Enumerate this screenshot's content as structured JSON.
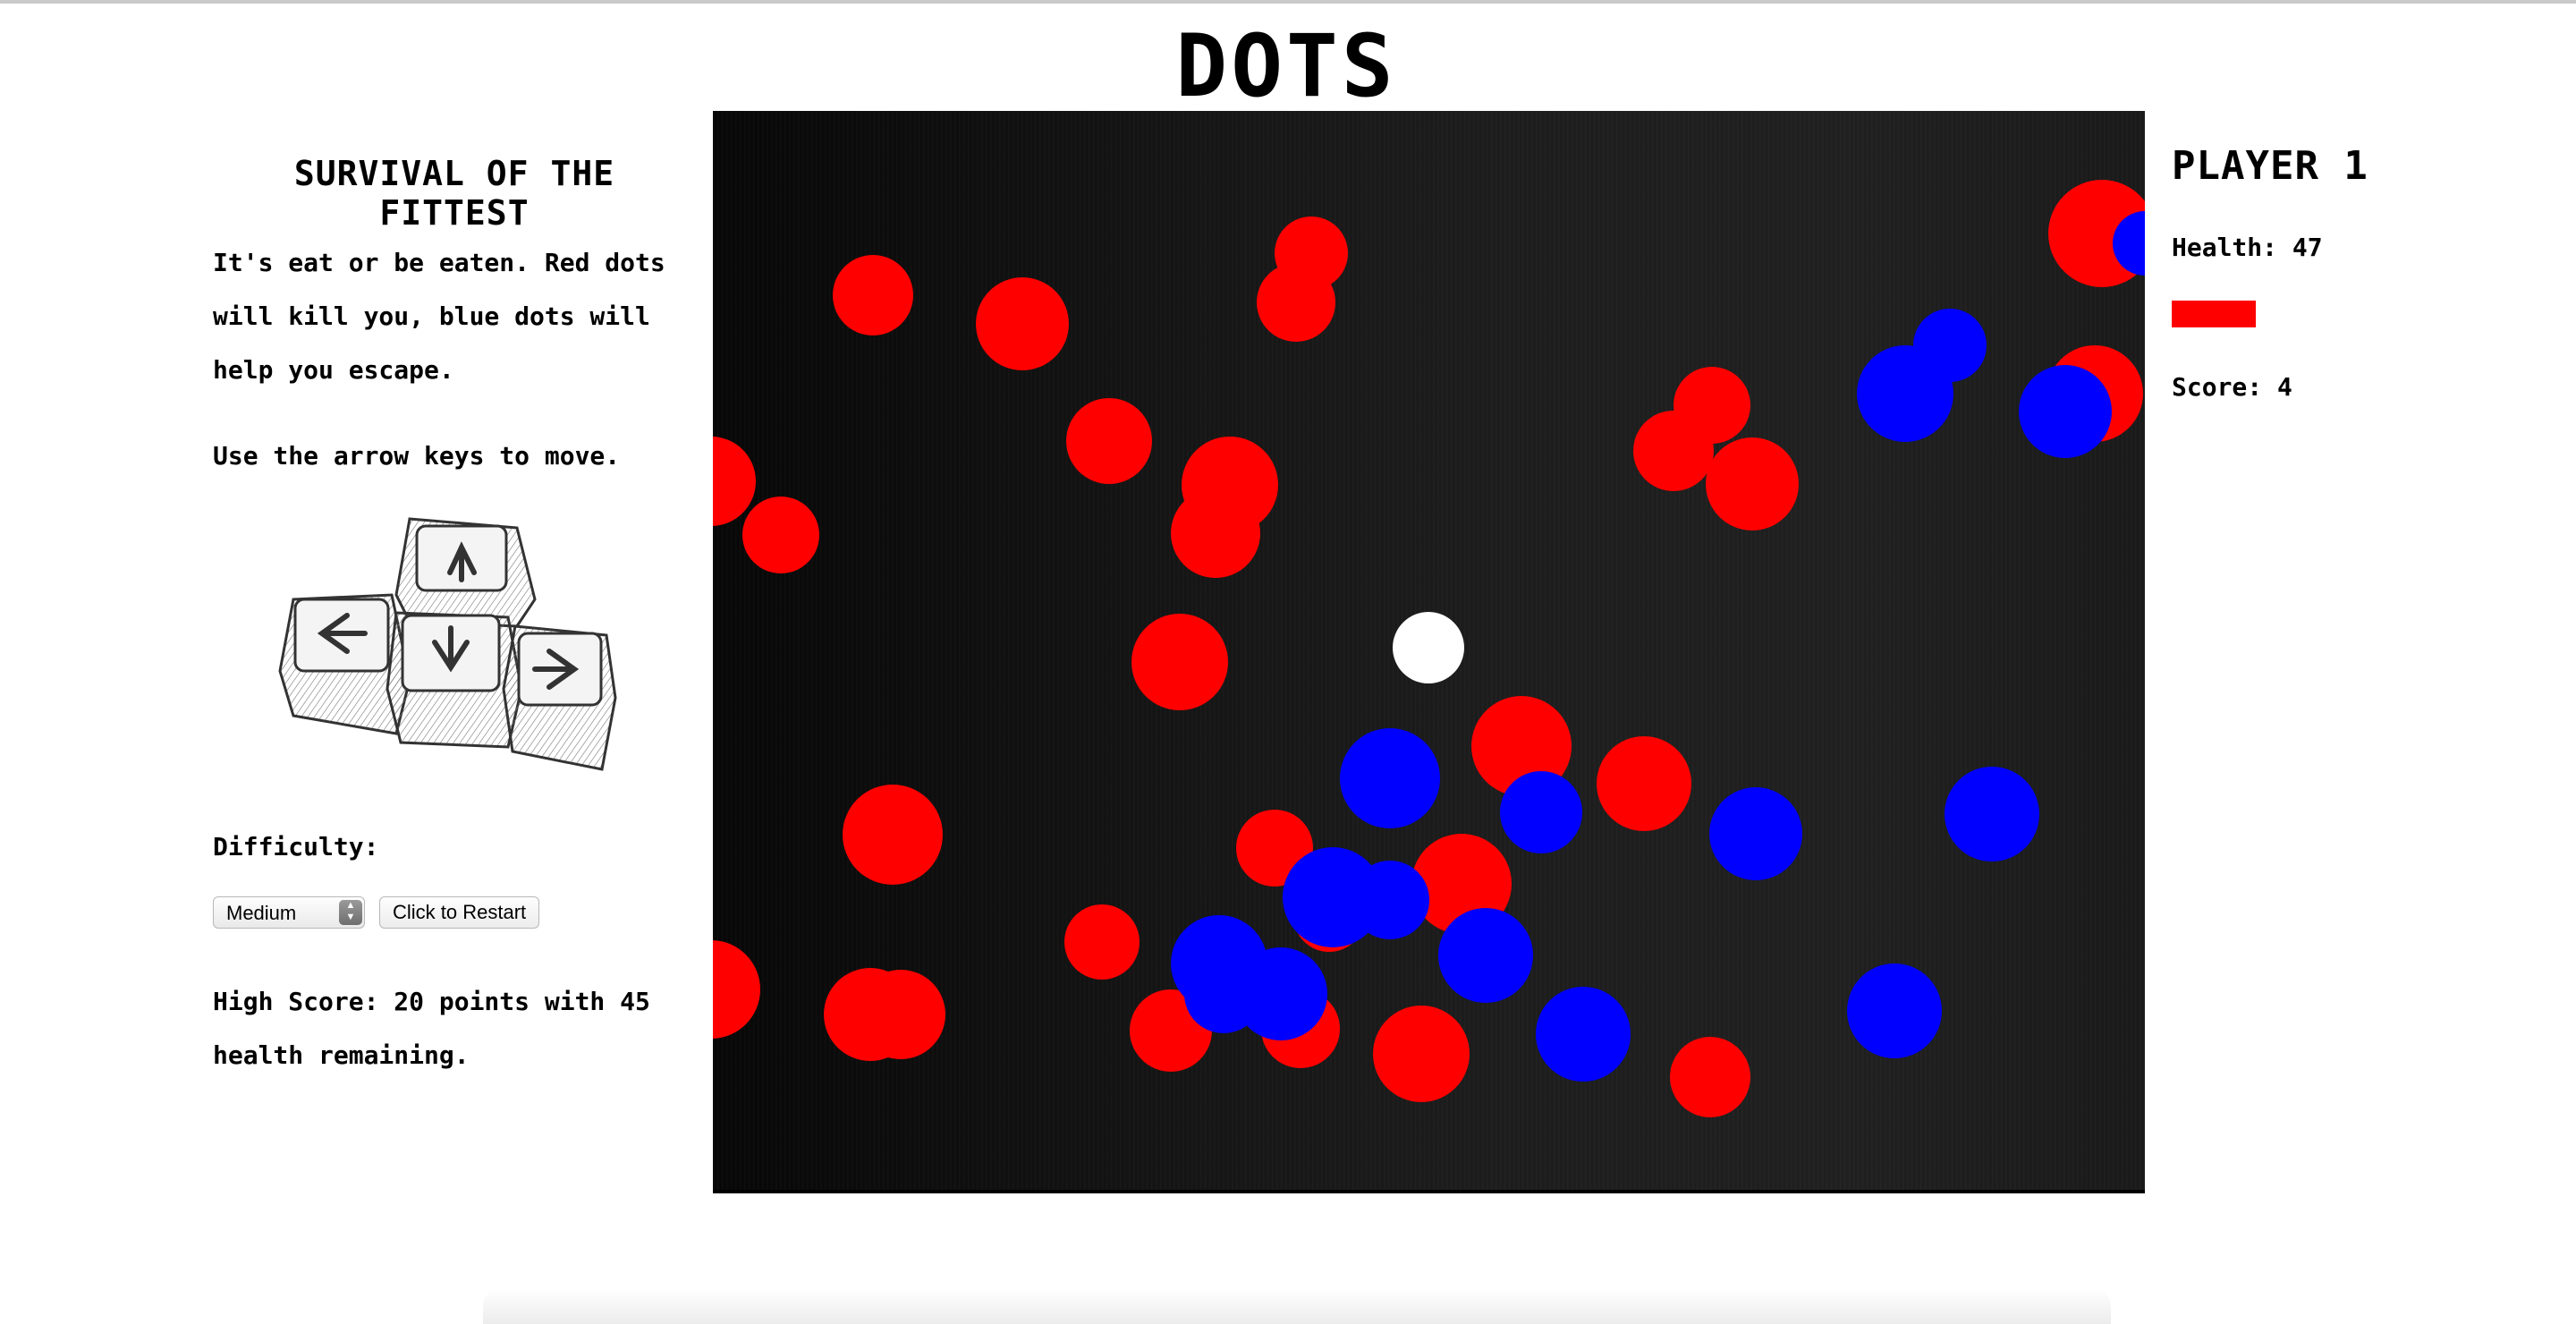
{
  "game_title": "DOTS",
  "left_panel": {
    "heading": "SURVIVAL OF THE FITTEST",
    "intro": "It's eat or be eaten. Red dots will kill you, blue dots will help you escape.",
    "instructions": "Use the arrow keys to move.",
    "difficulty_label": "Difficulty:",
    "difficulty_selected": "Medium",
    "restart_label": "Click to Restart",
    "high_score_text": "High Score: 20 points with 45 health remaining."
  },
  "right_panel": {
    "player_title": "PLAYER 1",
    "health_label": "Health:",
    "health_value": 47,
    "health_text": "Health: 47",
    "health_fraction": 0.47,
    "score_text": "Score: 4",
    "score_value": 4
  },
  "colors": {
    "enemy": "#ff0000",
    "ally": "#0000ff",
    "player": "#ffffff",
    "health_bar": "#ff0000"
  },
  "icons": [
    "arrow-keys-illustration",
    "select-stepper-icon"
  ]
}
